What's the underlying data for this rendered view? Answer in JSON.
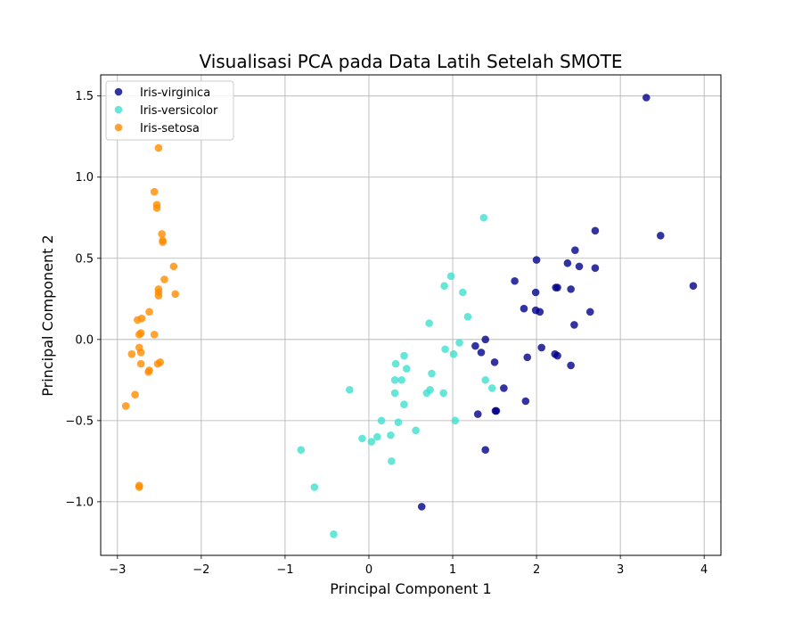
{
  "chart_data": {
    "type": "scatter",
    "title": "Visualisasi PCA pada Data Latih Setelah SMOTE",
    "xlabel": "Principal Component 1",
    "ylabel": "Principal Component 2",
    "xlim": [
      -3.2,
      4.2
    ],
    "ylim": [
      -1.33,
      1.63
    ],
    "xticks": [
      -3,
      -2,
      -1,
      0,
      1,
      2,
      3,
      4
    ],
    "xtick_labels": [
      "−3",
      "−2",
      "−1",
      "0",
      "1",
      "2",
      "3",
      "4"
    ],
    "yticks": [
      -1.0,
      -0.5,
      0.0,
      0.5,
      1.0,
      1.5
    ],
    "ytick_labels": [
      "−1.0",
      "−0.5",
      "0.0",
      "0.5",
      "1.0",
      "1.5"
    ],
    "grid": true,
    "legend_position": "top-left",
    "series": [
      {
        "name": "Iris-virginica",
        "color": "#00008b",
        "points": [
          [
            3.31,
            1.49
          ],
          [
            3.48,
            0.64
          ],
          [
            3.87,
            0.33
          ],
          [
            2.7,
            0.67
          ],
          [
            2.0,
            0.49
          ],
          [
            2.46,
            0.55
          ],
          [
            2.37,
            0.47
          ],
          [
            2.51,
            0.45
          ],
          [
            2.7,
            0.44
          ],
          [
            1.74,
            0.36
          ],
          [
            2.23,
            0.32
          ],
          [
            2.25,
            0.32
          ],
          [
            2.41,
            0.31
          ],
          [
            1.99,
            0.29
          ],
          [
            1.85,
            0.19
          ],
          [
            1.99,
            0.18
          ],
          [
            2.04,
            0.17
          ],
          [
            2.64,
            0.17
          ],
          [
            2.45,
            0.09
          ],
          [
            1.39,
            0.0
          ],
          [
            1.27,
            -0.04
          ],
          [
            2.06,
            -0.05
          ],
          [
            1.34,
            -0.08
          ],
          [
            2.22,
            -0.09
          ],
          [
            2.25,
            -0.1
          ],
          [
            1.89,
            -0.11
          ],
          [
            1.5,
            -0.14
          ],
          [
            2.41,
            -0.16
          ],
          [
            1.61,
            -0.3
          ],
          [
            1.87,
            -0.38
          ],
          [
            1.51,
            -0.44
          ],
          [
            1.52,
            -0.44
          ],
          [
            1.3,
            -0.46
          ],
          [
            1.39,
            -0.68
          ],
          [
            0.63,
            -1.03
          ]
        ]
      },
      {
        "name": "Iris-versicolor",
        "color": "#40e0d0",
        "points": [
          [
            1.37,
            0.75
          ],
          [
            0.98,
            0.39
          ],
          [
            0.9,
            0.33
          ],
          [
            1.12,
            0.29
          ],
          [
            1.18,
            0.14
          ],
          [
            0.72,
            0.1
          ],
          [
            1.08,
            -0.02
          ],
          [
            0.91,
            -0.06
          ],
          [
            1.01,
            -0.09
          ],
          [
            0.42,
            -0.1
          ],
          [
            0.32,
            -0.15
          ],
          [
            0.45,
            -0.18
          ],
          [
            0.75,
            -0.21
          ],
          [
            0.31,
            -0.25
          ],
          [
            0.39,
            -0.25
          ],
          [
            1.39,
            -0.25
          ],
          [
            1.47,
            -0.3
          ],
          [
            0.73,
            -0.31
          ],
          [
            -0.23,
            -0.31
          ],
          [
            0.31,
            -0.33
          ],
          [
            0.69,
            -0.33
          ],
          [
            0.89,
            -0.33
          ],
          [
            0.42,
            -0.4
          ],
          [
            0.15,
            -0.5
          ],
          [
            1.03,
            -0.5
          ],
          [
            0.35,
            -0.51
          ],
          [
            0.56,
            -0.56
          ],
          [
            0.26,
            -0.59
          ],
          [
            0.1,
            -0.6
          ],
          [
            -0.08,
            -0.61
          ],
          [
            0.03,
            -0.63
          ],
          [
            -0.81,
            -0.68
          ],
          [
            0.27,
            -0.75
          ],
          [
            -0.65,
            -0.91
          ],
          [
            -0.42,
            -1.2
          ]
        ]
      },
      {
        "name": "Iris-setosa",
        "color": "#ff8c00",
        "points": [
          [
            -2.51,
            1.18
          ],
          [
            -2.56,
            0.91
          ],
          [
            -2.53,
            0.83
          ],
          [
            -2.53,
            0.81
          ],
          [
            -2.47,
            0.65
          ],
          [
            -2.46,
            0.61
          ],
          [
            -2.46,
            0.6
          ],
          [
            -2.33,
            0.45
          ],
          [
            -2.44,
            0.37
          ],
          [
            -2.51,
            0.31
          ],
          [
            -2.51,
            0.29
          ],
          [
            -2.31,
            0.28
          ],
          [
            -2.51,
            0.27
          ],
          [
            -2.62,
            0.17
          ],
          [
            -2.71,
            0.13
          ],
          [
            -2.76,
            0.12
          ],
          [
            -2.72,
            0.04
          ],
          [
            -2.74,
            0.03
          ],
          [
            -2.56,
            0.03
          ],
          [
            -2.74,
            -0.05
          ],
          [
            -2.72,
            -0.08
          ],
          [
            -2.83,
            -0.09
          ],
          [
            -2.49,
            -0.14
          ],
          [
            -2.52,
            -0.15
          ],
          [
            -2.72,
            -0.15
          ],
          [
            -2.62,
            -0.19
          ],
          [
            -2.63,
            -0.2
          ],
          [
            -2.79,
            -0.34
          ],
          [
            -2.9,
            -0.41
          ],
          [
            -2.74,
            -0.9
          ],
          [
            -2.74,
            -0.91
          ]
        ]
      }
    ]
  }
}
